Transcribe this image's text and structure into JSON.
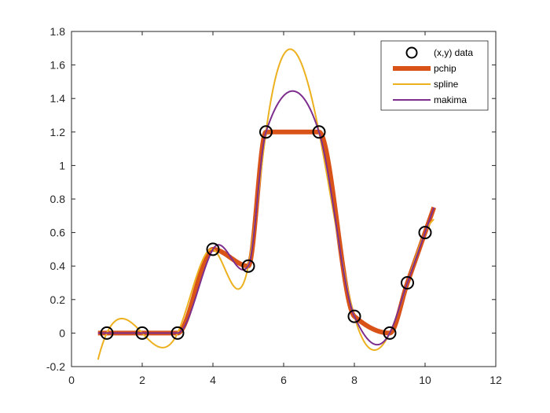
{
  "chart_data": {
    "type": "line",
    "title": "",
    "xlabel": "",
    "ylabel": "",
    "xlim": [
      0,
      12
    ],
    "ylim": [
      -0.2,
      1.8
    ],
    "xticks": [
      "0",
      "2",
      "4",
      "6",
      "8",
      "10",
      "12"
    ],
    "yticks": [
      "-0.2",
      "0",
      "0.2",
      "0.4",
      "0.6",
      "0.8",
      "1",
      "1.2",
      "1.4",
      "1.6",
      "1.8"
    ],
    "grid": false,
    "legend_position": "northeast",
    "x": [
      1,
      2,
      3,
      4,
      5,
      5.5,
      7,
      8,
      9,
      9.5,
      10
    ],
    "series": [
      {
        "name": "(x,y) data",
        "kind": "markers",
        "marker": "circle",
        "color": "#000000",
        "values": [
          0,
          0,
          0,
          0.5,
          0.4,
          1.2,
          1.2,
          0.1,
          0,
          0.3,
          0.6
        ]
      },
      {
        "name": "pchip",
        "kind": "interpolant",
        "method": "pchip",
        "color": "#D95319",
        "line_width": 6,
        "x_range": [
          0.75,
          10.25
        ]
      },
      {
        "name": "spline",
        "kind": "interpolant",
        "method": "spline",
        "color": "#EDB120",
        "line_width": 2,
        "x_range": [
          0.75,
          10.25
        ]
      },
      {
        "name": "makima",
        "kind": "interpolant",
        "method": "makima",
        "color": "#7E2F8E",
        "line_width": 2,
        "x_range": [
          0.75,
          10.25
        ]
      }
    ]
  },
  "legend": {
    "items": [
      {
        "label": "(x,y) data"
      },
      {
        "label": "pchip"
      },
      {
        "label": "spline"
      },
      {
        "label": "makima"
      }
    ]
  }
}
